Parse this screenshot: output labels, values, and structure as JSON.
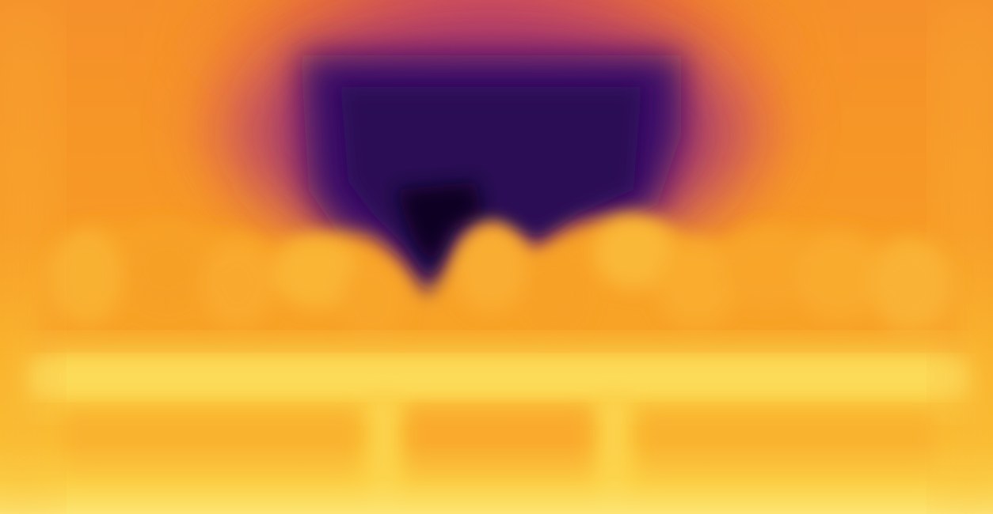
{
  "image": {
    "kind": "depth-map",
    "colormap": "inferno",
    "description_colors": {
      "far": "#000004",
      "deep": "#2b0c57",
      "mid_purple": "#5a1a78",
      "magenta": "#b73779",
      "red_orange": "#e55c30",
      "orange": "#f98c1a",
      "amber": "#fbb61a",
      "near": "#fcffa4",
      "yellow": "#f6d743"
    }
  }
}
